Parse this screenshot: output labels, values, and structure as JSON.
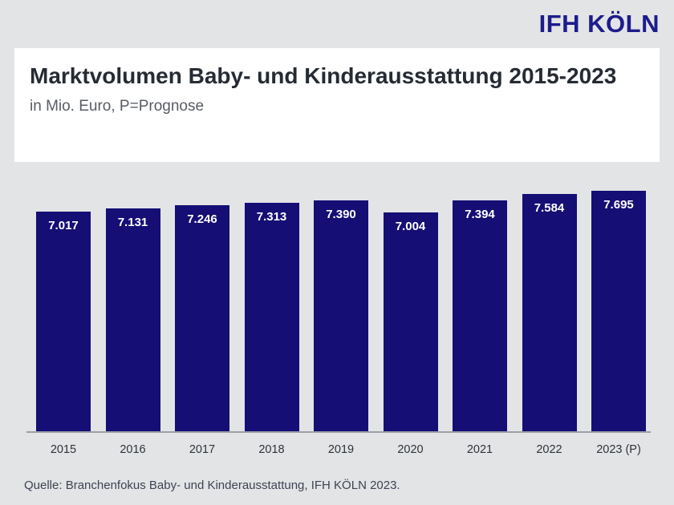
{
  "logo": {
    "text": "IFH KÖLN",
    "color": "#1e1b8a"
  },
  "card": {
    "title": "Marktvolumen Baby- und Kinderausstattung 2015-2023",
    "subtitle": "in Mio. Euro, P=Prognose"
  },
  "chart_data": {
    "type": "bar",
    "title": "Marktvolumen Baby- und Kinderausstattung 2015-2023",
    "subtitle": "in Mio. Euro, P=Prognose",
    "categories": [
      "2015",
      "2016",
      "2017",
      "2018",
      "2019",
      "2020",
      "2021",
      "2022",
      "2023 (P)"
    ],
    "values": [
      7017,
      7131,
      7246,
      7313,
      7390,
      7004,
      7394,
      7584,
      7695
    ],
    "value_labels": [
      "7.017",
      "7.131",
      "7.246",
      "7.313",
      "7.390",
      "7.004",
      "7.394",
      "7.584",
      "7.695"
    ],
    "unit": "Mio. Euro",
    "ylim": [
      0,
      7695
    ],
    "grid": false,
    "legend": "none",
    "bar_color": "#150e75",
    "value_label_color": "#ffffff",
    "background_color": "#e2e4e6",
    "axis_line_color": "#9aa0a6"
  },
  "footer": {
    "source": "Quelle: Branchenfokus Baby- und Kinderausstattung, IFH KÖLN 2023."
  }
}
